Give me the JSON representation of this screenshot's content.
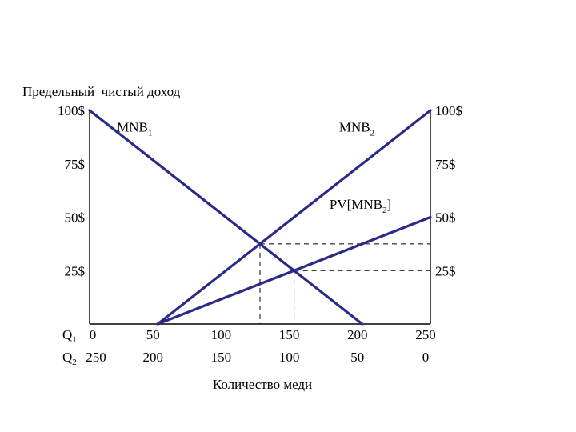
{
  "chart_data": {
    "type": "line",
    "ylabel": "Предельный  чистый доход",
    "xlabel": "Количество меди",
    "xlim": [
      0,
      250
    ],
    "ylim": [
      0,
      100
    ],
    "grid": false,
    "y_ticks_left": [
      "100$",
      "75$",
      "50$",
      "25$"
    ],
    "y_ticks_right": [
      "100$",
      "75$",
      "50$",
      "25$"
    ],
    "y_tick_values": [
      100,
      75,
      50,
      25
    ],
    "q_axis_labels": [
      "Q",
      "Q"
    ],
    "q_axis_subs": [
      "1",
      "2"
    ],
    "q1_ticks": [
      "0",
      "50",
      "100",
      "150",
      "200",
      "250"
    ],
    "q2_ticks": [
      "250",
      "200",
      "150",
      "100",
      "50",
      "0"
    ],
    "q_tick_values": [
      0,
      50,
      100,
      150,
      200,
      250
    ],
    "series": [
      {
        "name": "MNB",
        "sub": "1",
        "color": "#2b2a86",
        "x": [
          0,
          200
        ],
        "y": [
          100,
          0
        ]
      },
      {
        "name": "MNB",
        "sub": "2",
        "color": "#2b2a86",
        "x": [
          50,
          250
        ],
        "y": [
          0,
          100
        ]
      },
      {
        "name": "PV[MNB",
        "sub": "2",
        "suffix": "]",
        "color": "#2b2a86",
        "x": [
          50,
          250
        ],
        "y": [
          0,
          50
        ]
      }
    ],
    "reference_points": [
      {
        "x": 125,
        "y": 37.5
      },
      {
        "x": 150,
        "y": 25
      }
    ]
  }
}
